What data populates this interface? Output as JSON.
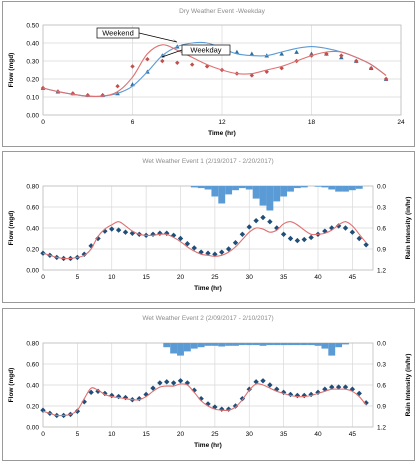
{
  "chart_data": [
    {
      "type": "line",
      "title": "Dry Weather Event -Weekday",
      "xlabel": "Time (hr)",
      "ylabel": "Flow (mgd)",
      "xlim": [
        0,
        24
      ],
      "ylim": [
        0,
        0.5
      ],
      "xticks": [
        "0",
        "6",
        "12",
        "18",
        "24"
      ],
      "yticks": [
        "0.00",
        "0.10",
        "0.20",
        "0.30",
        "0.40",
        "0.50"
      ],
      "grid": true,
      "annotations": [
        {
          "text": "Weekend",
          "x": 8.7,
          "y": 0.392
        },
        {
          "text": "Weekday",
          "x": 12.9,
          "y": 0.346
        }
      ],
      "series": [
        {
          "kind": "markers-triangle",
          "color": "#2f6fa0",
          "x": [
            0,
            1,
            2,
            3,
            4,
            5,
            6,
            7,
            8,
            9,
            10,
            11,
            12,
            13,
            14,
            15,
            16,
            17,
            18,
            19,
            20,
            21,
            22,
            23
          ],
          "y": [
            0.15,
            0.13,
            0.12,
            0.11,
            0.11,
            0.12,
            0.17,
            0.24,
            0.33,
            0.38,
            0.38,
            0.38,
            0.37,
            0.35,
            0.34,
            0.33,
            0.34,
            0.35,
            0.34,
            0.34,
            0.32,
            0.3,
            0.26,
            0.2
          ]
        },
        {
          "kind": "markers-diamond",
          "color": "#c0504d",
          "x": [
            0,
            1,
            2,
            3,
            4,
            5,
            6,
            7,
            8,
            9,
            10,
            11,
            12,
            13,
            14,
            15,
            16,
            17,
            18,
            19,
            20,
            21,
            22,
            23
          ],
          "y": [
            0.15,
            0.13,
            0.12,
            0.11,
            0.11,
            0.16,
            0.27,
            0.31,
            0.3,
            0.29,
            0.28,
            0.27,
            0.25,
            0.23,
            0.22,
            0.24,
            0.26,
            0.3,
            0.33,
            0.34,
            0.33,
            0.3,
            0.26,
            0.2
          ]
        },
        {
          "kind": "line",
          "color": "#5b9bd5",
          "x": [
            0,
            1,
            2,
            3,
            4,
            5,
            6,
            7,
            8,
            9,
            10,
            11,
            12,
            13,
            14,
            15,
            16,
            17,
            18,
            19,
            20,
            21,
            22,
            23
          ],
          "y": [
            0.15,
            0.13,
            0.115,
            0.105,
            0.105,
            0.12,
            0.16,
            0.24,
            0.33,
            0.38,
            0.4,
            0.4,
            0.37,
            0.34,
            0.33,
            0.33,
            0.35,
            0.37,
            0.38,
            0.37,
            0.35,
            0.32,
            0.28,
            0.22
          ]
        },
        {
          "kind": "line",
          "color": "#e07070",
          "x": [
            0,
            1,
            2,
            3,
            4,
            5,
            6,
            7,
            8,
            9,
            10,
            11,
            12,
            13,
            14,
            15,
            16,
            17,
            18,
            19,
            20,
            21,
            22,
            23
          ],
          "y": [
            0.15,
            0.13,
            0.115,
            0.105,
            0.105,
            0.13,
            0.21,
            0.34,
            0.39,
            0.36,
            0.32,
            0.28,
            0.25,
            0.23,
            0.23,
            0.25,
            0.27,
            0.3,
            0.33,
            0.35,
            0.35,
            0.32,
            0.28,
            0.22
          ]
        }
      ]
    },
    {
      "type": "line",
      "title": "Wet Weather Event 1 (2/19/2017 - 2/20/2017)",
      "xlabel": "Time (hr)",
      "ylabel": "Flow (mgd)",
      "y2label": "Rain Intensity (in/hr)",
      "xlim": [
        0,
        48
      ],
      "ylim": [
        0,
        0.8
      ],
      "y2lim": [
        0,
        1.2
      ],
      "xticks": [
        "0",
        "5",
        "10",
        "15",
        "20",
        "25",
        "30",
        "35",
        "40",
        "45"
      ],
      "yticks": [
        "0.00",
        "0.20",
        "0.40",
        "0.60",
        "0.80"
      ],
      "y2ticks": [
        "0.0",
        "0.3",
        "0.6",
        "0.9",
        "1.2"
      ],
      "grid": true,
      "series": [
        {
          "kind": "markers-diamond",
          "color": "#1f4e79",
          "x": [
            0,
            1,
            2,
            3,
            4,
            5,
            6,
            7,
            8,
            9,
            10,
            11,
            12,
            13,
            14,
            15,
            16,
            17,
            18,
            19,
            20,
            21,
            22,
            23,
            24,
            25,
            26,
            27,
            28,
            29,
            30,
            31,
            32,
            33,
            34,
            35,
            36,
            37,
            38,
            39,
            40,
            41,
            42,
            43,
            44,
            45,
            46,
            47
          ],
          "y": [
            0.16,
            0.14,
            0.12,
            0.11,
            0.11,
            0.12,
            0.15,
            0.23,
            0.3,
            0.37,
            0.39,
            0.38,
            0.36,
            0.35,
            0.34,
            0.33,
            0.34,
            0.35,
            0.35,
            0.33,
            0.3,
            0.25,
            0.21,
            0.17,
            0.16,
            0.15,
            0.17,
            0.2,
            0.26,
            0.34,
            0.41,
            0.47,
            0.5,
            0.46,
            0.4,
            0.34,
            0.3,
            0.28,
            0.29,
            0.31,
            0.34,
            0.37,
            0.4,
            0.42,
            0.4,
            0.36,
            0.3,
            0.24
          ]
        },
        {
          "kind": "line",
          "color": "#e07070",
          "x": [
            0,
            1,
            2,
            3,
            4,
            5,
            6,
            7,
            8,
            9,
            10,
            11,
            12,
            13,
            14,
            15,
            16,
            17,
            18,
            19,
            20,
            21,
            22,
            23,
            24,
            25,
            26,
            27,
            28,
            29,
            30,
            31,
            32,
            33,
            34,
            35,
            36,
            37,
            38,
            39,
            40,
            41,
            42,
            43,
            44,
            45,
            46,
            47
          ],
          "y": [
            0.16,
            0.14,
            0.12,
            0.11,
            0.11,
            0.12,
            0.14,
            0.2,
            0.32,
            0.39,
            0.43,
            0.46,
            0.42,
            0.37,
            0.34,
            0.33,
            0.33,
            0.34,
            0.34,
            0.31,
            0.27,
            0.22,
            0.18,
            0.15,
            0.14,
            0.13,
            0.14,
            0.17,
            0.22,
            0.29,
            0.36,
            0.4,
            0.39,
            0.36,
            0.38,
            0.44,
            0.46,
            0.43,
            0.38,
            0.34,
            0.34,
            0.35,
            0.38,
            0.43,
            0.46,
            0.42,
            0.34,
            0.26
          ]
        },
        {
          "kind": "bars-down",
          "name": "Rain",
          "axis": "y2",
          "color": "#5b9bd5",
          "x": [
            22,
            23,
            24,
            25,
            26,
            27,
            28,
            29,
            30,
            31,
            32,
            33,
            34,
            35,
            36,
            37,
            38,
            39,
            40,
            41,
            42,
            43,
            44,
            45,
            46
          ],
          "y": [
            0.02,
            0.03,
            0.05,
            0.15,
            0.25,
            0.12,
            0.06,
            0.03,
            0.05,
            0.18,
            0.28,
            0.35,
            0.22,
            0.15,
            0.08,
            0.03,
            0.02,
            0.0,
            0.01,
            0.02,
            0.05,
            0.08,
            0.08,
            0.06,
            0.04
          ]
        }
      ]
    },
    {
      "type": "line",
      "title": "Wet Weather Event 2 (2/09/2017 - 2/10/2017)",
      "xlabel": "Time (hr)",
      "ylabel": "Flow (mgd)",
      "y2label": "Rain Intensity (in/hr)",
      "xlim": [
        0,
        48
      ],
      "ylim": [
        0,
        0.8
      ],
      "y2lim": [
        0,
        1.2
      ],
      "xticks": [
        "0",
        "5",
        "10",
        "15",
        "20",
        "25",
        "30",
        "35",
        "40",
        "45"
      ],
      "yticks": [
        "0.00",
        "0.20",
        "0.40",
        "0.60",
        "0.80"
      ],
      "y2ticks": [
        "0.0",
        "0.3",
        "0.6",
        "0.9",
        "1.2"
      ],
      "grid": true,
      "series": [
        {
          "kind": "markers-diamond",
          "color": "#1f4e79",
          "x": [
            0,
            1,
            2,
            3,
            4,
            5,
            6,
            7,
            8,
            9,
            10,
            11,
            12,
            13,
            14,
            15,
            16,
            17,
            18,
            19,
            20,
            21,
            22,
            23,
            24,
            25,
            26,
            27,
            28,
            29,
            30,
            31,
            32,
            33,
            34,
            35,
            36,
            37,
            38,
            39,
            40,
            41,
            42,
            43,
            44,
            45,
            46,
            47
          ],
          "y": [
            0.16,
            0.13,
            0.11,
            0.11,
            0.12,
            0.15,
            0.24,
            0.33,
            0.34,
            0.32,
            0.3,
            0.29,
            0.28,
            0.26,
            0.27,
            0.31,
            0.37,
            0.42,
            0.43,
            0.42,
            0.44,
            0.42,
            0.35,
            0.27,
            0.22,
            0.19,
            0.17,
            0.17,
            0.2,
            0.27,
            0.36,
            0.43,
            0.44,
            0.4,
            0.36,
            0.33,
            0.31,
            0.3,
            0.3,
            0.31,
            0.33,
            0.36,
            0.38,
            0.38,
            0.38,
            0.36,
            0.32,
            0.23
          ]
        },
        {
          "kind": "line",
          "color": "#e07070",
          "x": [
            0,
            1,
            2,
            3,
            4,
            5,
            6,
            7,
            8,
            9,
            10,
            11,
            12,
            13,
            14,
            15,
            16,
            17,
            18,
            19,
            20,
            21,
            22,
            23,
            24,
            25,
            26,
            27,
            28,
            29,
            30,
            31,
            32,
            33,
            34,
            35,
            36,
            37,
            38,
            39,
            40,
            41,
            42,
            43,
            44,
            45,
            46,
            47
          ],
          "y": [
            0.15,
            0.13,
            0.11,
            0.11,
            0.12,
            0.16,
            0.27,
            0.37,
            0.35,
            0.31,
            0.29,
            0.28,
            0.27,
            0.26,
            0.26,
            0.29,
            0.34,
            0.38,
            0.39,
            0.39,
            0.41,
            0.4,
            0.33,
            0.25,
            0.2,
            0.17,
            0.16,
            0.16,
            0.19,
            0.26,
            0.35,
            0.41,
            0.4,
            0.37,
            0.34,
            0.32,
            0.3,
            0.29,
            0.29,
            0.3,
            0.32,
            0.34,
            0.36,
            0.36,
            0.36,
            0.34,
            0.29,
            0.21
          ]
        },
        {
          "kind": "bars-down",
          "name": "Rain",
          "axis": "y2",
          "color": "#5b9bd5",
          "x": [
            18,
            19,
            20,
            21,
            22,
            23,
            24,
            25,
            26,
            27,
            28,
            29,
            30,
            31,
            32,
            33,
            34,
            35,
            36,
            37,
            38,
            39,
            40,
            41,
            42,
            43,
            44
          ],
          "y": [
            0.06,
            0.15,
            0.18,
            0.12,
            0.08,
            0.06,
            0.04,
            0.04,
            0.05,
            0.04,
            0.04,
            0.03,
            0.03,
            0.03,
            0.04,
            0.03,
            0.03,
            0.03,
            0.03,
            0.03,
            0.03,
            0.03,
            0.04,
            0.08,
            0.18,
            0.06,
            0.02
          ]
        }
      ]
    }
  ]
}
